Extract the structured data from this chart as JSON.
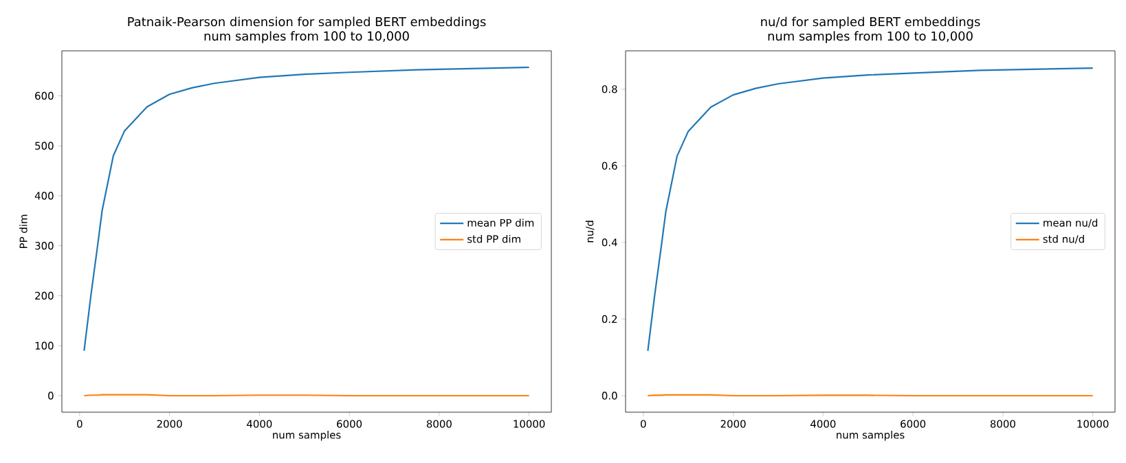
{
  "chart_data": [
    {
      "type": "line",
      "title": "Patnaik-Pearson dimension for sampled BERT embeddings\nnum samples from 100 to 10,000",
      "xlabel": "num samples",
      "ylabel": "PP dim",
      "x": [
        100,
        250,
        400,
        500,
        750,
        1000,
        1500,
        2000,
        2500,
        3000,
        4000,
        5000,
        6000,
        7500,
        10000
      ],
      "series": [
        {
          "name": "mean PP dim",
          "color": "#1f77b4",
          "values": [
            90,
            200,
            300,
            370,
            480,
            530,
            578,
            603,
            616,
            625,
            637,
            643,
            647,
            652,
            657
          ]
        },
        {
          "name": "std PP dim",
          "color": "#ff7f0e",
          "values": [
            0,
            1,
            1,
            2,
            2,
            2,
            2,
            0,
            0,
            0,
            1,
            1,
            0,
            0,
            0
          ]
        }
      ],
      "xlim": [
        -395,
        10495
      ],
      "ylim": [
        -33,
        690
      ],
      "xticks": [
        0,
        2000,
        4000,
        6000,
        8000,
        10000
      ],
      "yticks": [
        0,
        100,
        200,
        300,
        400,
        500,
        600
      ],
      "legend": "right",
      "grid": false
    },
    {
      "type": "line",
      "title": "nu/d for sampled BERT embeddings\nnum samples from 100 to 10,000",
      "xlabel": "num samples",
      "ylabel": "nu/d",
      "x": [
        100,
        250,
        400,
        500,
        750,
        1000,
        1500,
        2000,
        2500,
        3000,
        4000,
        5000,
        6000,
        7500,
        10000
      ],
      "series": [
        {
          "name": "mean nu/d",
          "color": "#1f77b4",
          "values": [
            0.117,
            0.26,
            0.39,
            0.48,
            0.625,
            0.69,
            0.753,
            0.785,
            0.802,
            0.814,
            0.829,
            0.837,
            0.842,
            0.849,
            0.855
          ]
        },
        {
          "name": "std nu/d",
          "color": "#ff7f0e",
          "values": [
            0,
            0.001,
            0.001,
            0.002,
            0.002,
            0.002,
            0.002,
            0,
            0,
            0,
            0.001,
            0.001,
            0,
            0,
            0
          ]
        }
      ],
      "xlim": [
        -395,
        10495
      ],
      "ylim": [
        -0.043,
        0.9
      ],
      "xticks": [
        0,
        2000,
        4000,
        6000,
        8000,
        10000
      ],
      "yticks": [
        {
          "value": 0,
          "label": "0.0"
        },
        0.2,
        0.4,
        0.6,
        0.8
      ],
      "legend": "right",
      "grid": false
    }
  ]
}
